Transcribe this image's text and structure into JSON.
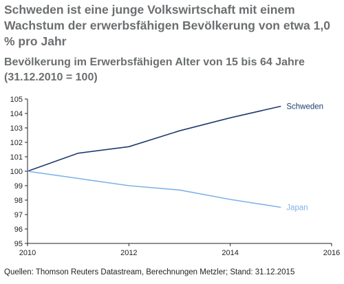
{
  "chart_title": "Schweden ist eine junge Volkswirtschaft mit einem Wachstum der erwerbsfähigen Bevölkerung von etwa 1,0 % pro Jahr",
  "chart_subtitle": "Bevölkerung im Erwerbsfähigen Alter von 15 bis 64 Jahre (31.12.2010 = 100)",
  "source": "Quellen: Thomson Reuters Datastream, Berechnungen Metzler; Stand: 31.12.2015",
  "colors": {
    "schweden": "#1f3a6e",
    "japan": "#7fb2e6",
    "text": "#6b6e70",
    "axis": "#222222"
  },
  "chart_data": {
    "type": "line",
    "title": "Schweden ist eine junge Volkswirtschaft mit einem Wachstum der erwerbsfähigen Bevölkerung von etwa 1,0 % pro Jahr",
    "subtitle": "Bevölkerung im Erwerbsfähigen Alter von 15 bis 64 Jahre (31.12.2010 = 100)",
    "xlabel": "",
    "ylabel": "",
    "xlim": [
      2010,
      2016
    ],
    "ylim": [
      95,
      105
    ],
    "x_ticks": [
      2010,
      2012,
      2014,
      2016
    ],
    "y_ticks": [
      95,
      96,
      97,
      98,
      99,
      100,
      101,
      102,
      103,
      104,
      105
    ],
    "grid": false,
    "series": [
      {
        "name": "Schweden",
        "x": [
          2010,
          2011,
          2012,
          2013,
          2014,
          2015
        ],
        "y": [
          100,
          101.25,
          101.7,
          102.8,
          103.7,
          104.5
        ]
      },
      {
        "name": "Japan",
        "x": [
          2010,
          2011,
          2012,
          2013,
          2014,
          2015
        ],
        "y": [
          100,
          99.5,
          99.0,
          98.7,
          98.05,
          97.5
        ]
      }
    ]
  }
}
